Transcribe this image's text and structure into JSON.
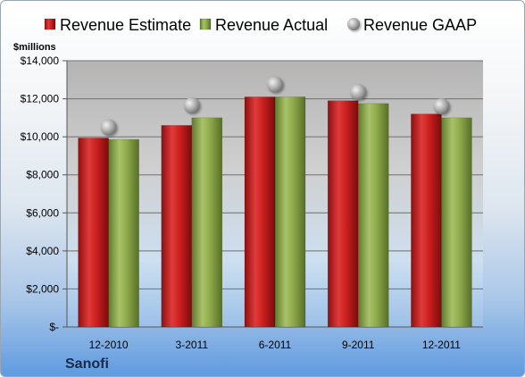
{
  "chart_data": {
    "type": "bar",
    "unit_label": "$millions",
    "company": "Sanofi",
    "categories": [
      "12-2010",
      "3-2011",
      "6-2011",
      "9-2011",
      "12-2011"
    ],
    "series": [
      {
        "name": "Revenue Estimate",
        "kind": "bar",
        "color": "#cc1f1f",
        "values": [
          9940,
          10600,
          12100,
          11900,
          11200
        ]
      },
      {
        "name": "Revenue Actual",
        "kind": "bar",
        "color": "#8faa4c",
        "values": [
          9860,
          11000,
          12100,
          11750,
          11000
        ]
      },
      {
        "name": "Revenue GAAP",
        "kind": "marker",
        "color": "#a0a0a0",
        "values": [
          10500,
          11650,
          12750,
          12350,
          11600
        ]
      }
    ],
    "ylim": [
      0,
      14000
    ],
    "yticks": [
      0,
      2000,
      4000,
      6000,
      8000,
      10000,
      12000,
      14000
    ],
    "ytick_labels": [
      "$-",
      "$2,000",
      "$4,000",
      "$6,000",
      "$8,000",
      "$10,000",
      "$12,000",
      "$14,000"
    ],
    "grid": true,
    "legend_position": "top"
  }
}
